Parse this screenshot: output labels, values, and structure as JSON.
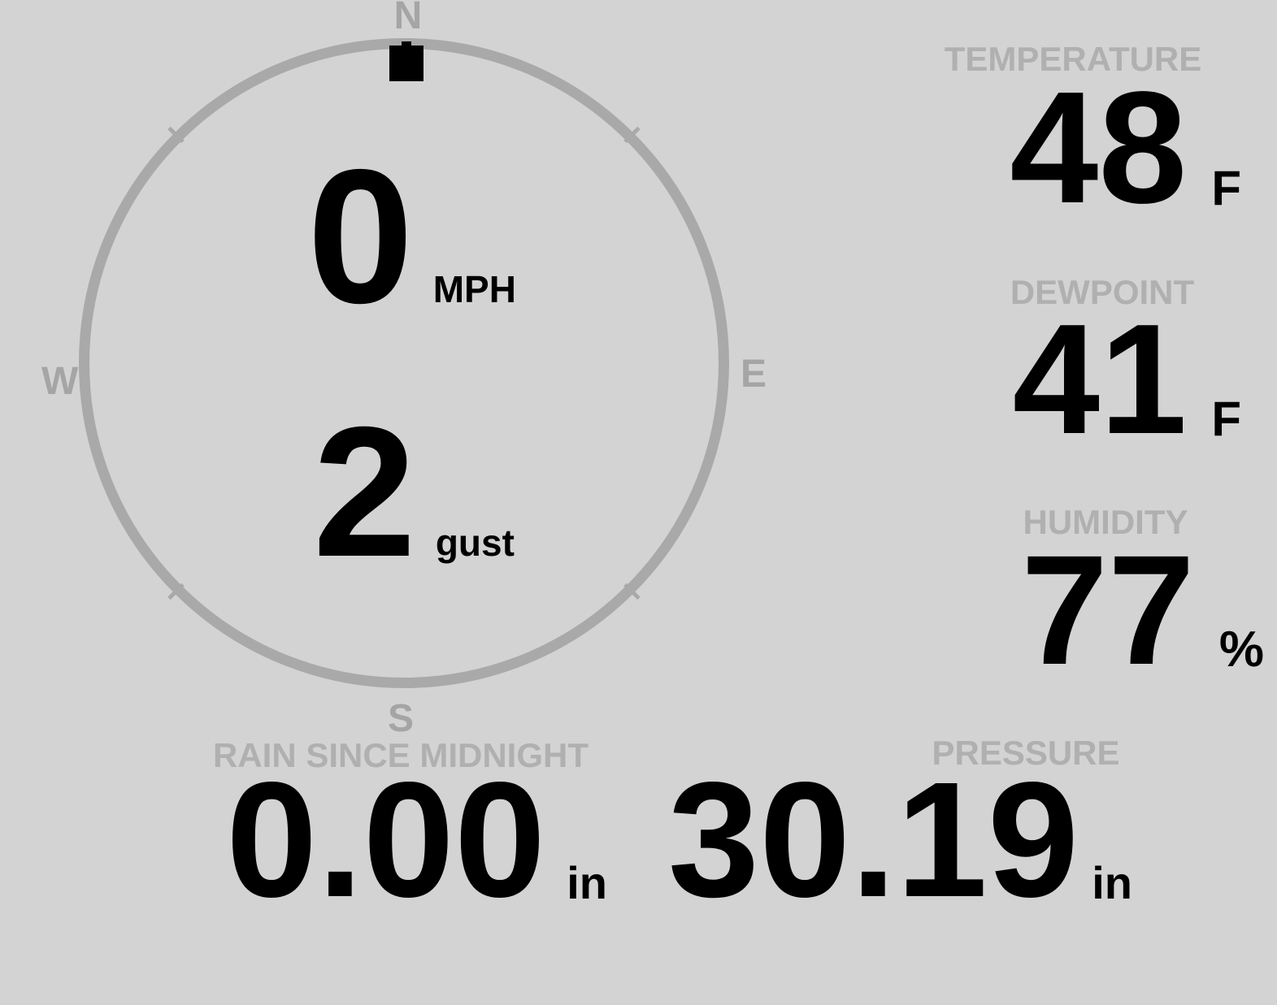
{
  "theme": {
    "background": "#d3d3d3",
    "compass_gray": "#a9a9a9",
    "label_gray": "#b0b0b0",
    "value_black": "#000000"
  },
  "compass": {
    "cardinals": {
      "north": "N",
      "east": "E",
      "south": "S",
      "west": "W"
    },
    "marker_direction": "N",
    "wind_speed": {
      "value": "0",
      "unit": "MPH"
    },
    "wind_gust": {
      "value": "2",
      "unit": "gust"
    }
  },
  "readouts": {
    "temperature": {
      "label": "TEMPERATURE",
      "value": "48",
      "unit": "F"
    },
    "dewpoint": {
      "label": "DEWPOINT",
      "value": "41",
      "unit": "F"
    },
    "humidity": {
      "label": "HUMIDITY",
      "value": "77",
      "unit": "%"
    },
    "rain": {
      "label": "RAIN SINCE MIDNIGHT",
      "value": "0.00",
      "unit": "in"
    },
    "pressure": {
      "label": "PRESSURE",
      "value": "30.19",
      "unit": "in"
    }
  }
}
